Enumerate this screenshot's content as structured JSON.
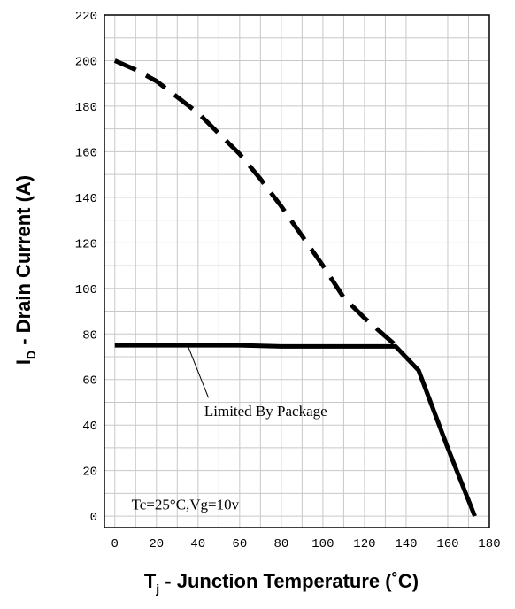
{
  "chart_data": {
    "type": "line",
    "xlabel": {
      "main": "T",
      "sub": "j",
      "rest": " - Junction Temperature (˚C)"
    },
    "ylabel": {
      "main": "I",
      "sub": "D",
      "rest": " - Drain Current (A)"
    },
    "xlim": [
      -5,
      180
    ],
    "ylim": [
      -5,
      220
    ],
    "x_ticks": [
      "0",
      "20",
      "40",
      "60",
      "80",
      "100",
      "120",
      "140",
      "160",
      "180"
    ],
    "y_ticks": [
      "0",
      "20",
      "40",
      "60",
      "80",
      "100",
      "120",
      "140",
      "160",
      "180",
      "200",
      "220"
    ],
    "grid": true,
    "series": [
      {
        "style": "dashed",
        "x": [
          0,
          10,
          20,
          30,
          40,
          50,
          60,
          70,
          80,
          90,
          100,
          110,
          120,
          130,
          135
        ],
        "y": [
          200,
          196,
          191,
          184,
          177,
          168,
          159,
          148,
          136,
          123,
          110,
          96,
          87,
          79,
          75
        ]
      },
      {
        "style": "solid",
        "x": [
          0,
          20,
          40,
          60,
          80,
          100,
          120,
          135,
          146,
          160,
          173
        ],
        "y": [
          75,
          75,
          75,
          75,
          74.5,
          74.5,
          74.5,
          74.5,
          64,
          30,
          0
        ]
      }
    ],
    "annotations": [
      {
        "text": "Limited By Package",
        "target_x": 35,
        "target_y": 75,
        "label_x": 43,
        "label_y": 44
      },
      {
        "text": "Tc=25°C,Vg=10v",
        "label_x": 8,
        "label_y": 3
      }
    ]
  }
}
